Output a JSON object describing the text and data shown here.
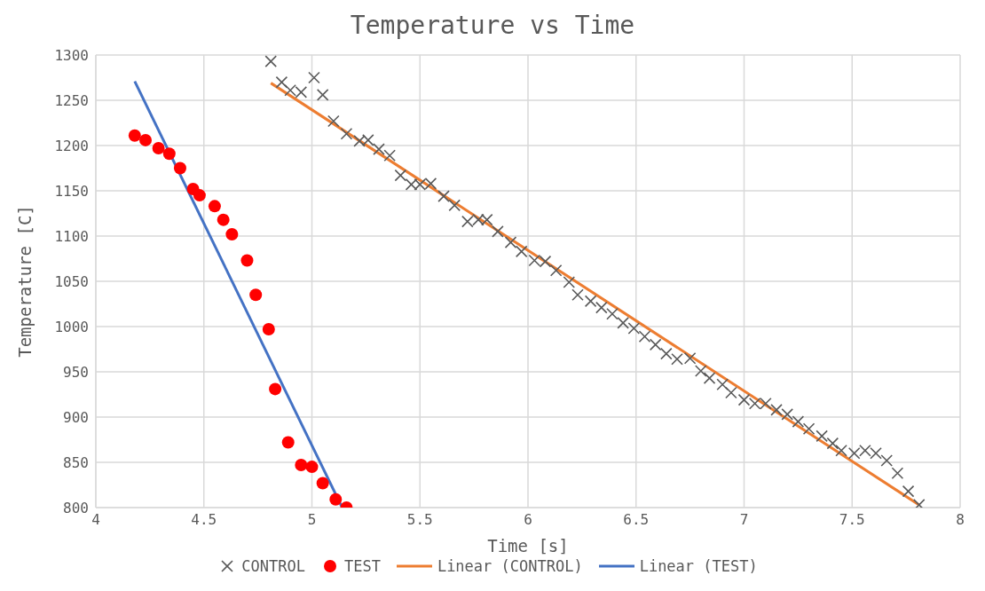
{
  "chart_data": {
    "type": "scatter",
    "title": "Temperature vs Time",
    "xlabel": "Time [s]",
    "ylabel": "Temperature [C]",
    "xlim": [
      4,
      8
    ],
    "xticks": [
      4,
      4.5,
      5,
      5.5,
      6,
      6.5,
      7,
      7.5,
      8
    ],
    "ylim": [
      800,
      1300
    ],
    "yticks": [
      800,
      850,
      900,
      950,
      1000,
      1050,
      1100,
      1150,
      1200,
      1250,
      1300
    ],
    "grid": true,
    "legend": "bottom",
    "series": [
      {
        "name": "CONTROL",
        "marker": "cross",
        "color": "#595959",
        "x": [
          4.81,
          4.86,
          4.9,
          4.95,
          5.01,
          5.05,
          5.1,
          5.16,
          5.22,
          5.26,
          5.31,
          5.36,
          5.41,
          5.46,
          5.5,
          5.55,
          5.61,
          5.66,
          5.72,
          5.77,
          5.81,
          5.86,
          5.92,
          5.97,
          6.03,
          6.08,
          6.13,
          6.19,
          6.23,
          6.29,
          6.34,
          6.39,
          6.44,
          6.49,
          6.54,
          6.59,
          6.64,
          6.69,
          6.75,
          6.8,
          6.84,
          6.9,
          6.94,
          7,
          7.05,
          7.1,
          7.15,
          7.2,
          7.25,
          7.3,
          7.36,
          7.41,
          7.45,
          7.51,
          7.56,
          7.61,
          7.66,
          7.71,
          7.76,
          7.81
        ],
        "values": [
          1293,
          1270,
          1261,
          1259,
          1275,
          1256,
          1227,
          1213,
          1205,
          1206,
          1196,
          1189,
          1167,
          1157,
          1157,
          1158,
          1144,
          1134,
          1116,
          1118,
          1118,
          1105,
          1093,
          1083,
          1073,
          1072,
          1062,
          1049,
          1035,
          1028,
          1021,
          1014,
          1004,
          998,
          989,
          980,
          970,
          964,
          965,
          951,
          943,
          936,
          927,
          919,
          915,
          915,
          908,
          903,
          895,
          887,
          879,
          871,
          863,
          860,
          863,
          860,
          852,
          838,
          818,
          803
        ]
      },
      {
        "name": "TEST",
        "marker": "circle",
        "color": "#ff0000",
        "x": [
          4.18,
          4.23,
          4.29,
          4.34,
          4.39,
          4.45,
          4.48,
          4.55,
          4.59,
          4.63,
          4.7,
          4.74,
          4.8,
          4.83,
          4.89,
          4.95,
          5,
          5.05,
          5.11,
          5.16
        ],
        "values": [
          1211,
          1206,
          1197,
          1191,
          1175,
          1152,
          1145,
          1133,
          1118,
          1102,
          1073,
          1035,
          997,
          931,
          872,
          847,
          845,
          827,
          809,
          800
        ]
      },
      {
        "name": "Linear (CONTROL)",
        "type": "line",
        "color": "#ed7d31",
        "x": [
          4.81,
          7.81
        ],
        "values": [
          1269,
          803
        ]
      },
      {
        "name": "Linear (TEST)",
        "type": "line",
        "color": "#4472c4",
        "x": [
          4.18,
          5.14
        ],
        "values": [
          1271,
          800
        ]
      }
    ]
  }
}
